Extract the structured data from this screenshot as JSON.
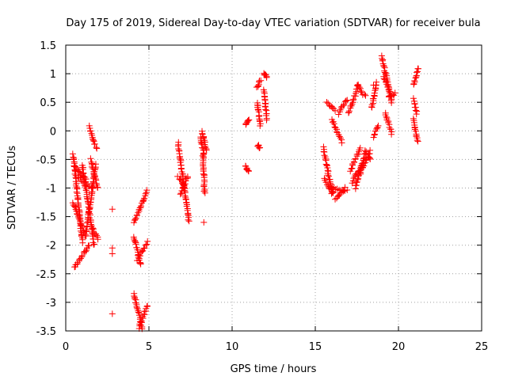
{
  "chart_data": {
    "type": "scatter",
    "title": "Day 175 of 2019, Sidereal Day-to-day VTEC variation (SDTVAR) for receiver bula",
    "xlabel": "GPS time / hours",
    "ylabel": "SDTVAR / TECUs",
    "xlim": [
      0,
      25
    ],
    "ylim": [
      -3.5,
      1.5
    ],
    "xticks": [
      0,
      5,
      10,
      15,
      20,
      25
    ],
    "yticks": [
      -3.5,
      -3,
      -2.5,
      -2,
      -1.5,
      -1,
      -0.5,
      0,
      0.5,
      1,
      1.5
    ],
    "xtick_labels": [
      "0",
      "5",
      "10",
      "15",
      "20",
      "25"
    ],
    "ytick_labels": [
      "-3.5",
      "-3",
      "-2.5",
      "-2",
      "-1.5",
      "-1",
      "-0.5",
      "0",
      "0.5",
      "1",
      "1.5"
    ],
    "grid": true,
    "marker": "+",
    "color": "#ff0000",
    "tracks": [
      {
        "x0": 0.45,
        "x1": 1.0,
        "y0": -0.42,
        "y1": -1.95
      },
      {
        "x0": 0.45,
        "x1": 1.2,
        "y0": -1.25,
        "y1": -1.85
      },
      {
        "x0": 0.5,
        "x1": 1.4,
        "y0": -2.4,
        "y1": -2.0
      },
      {
        "x0": 0.5,
        "x1": 1.2,
        "y0": -0.6,
        "y1": -0.85
      },
      {
        "x0": 0.7,
        "x1": 1.6,
        "y0": -0.8,
        "y1": -1.0
      },
      {
        "x0": 1.0,
        "x1": 1.7,
        "y0": -0.6,
        "y1": -2.0
      },
      {
        "x0": 1.2,
        "x1": 1.8,
        "y0": -1.8,
        "y1": -0.6
      },
      {
        "x0": 1.4,
        "x1": 1.85,
        "y0": 0.07,
        "y1": -0.3
      },
      {
        "x0": 1.5,
        "x1": 1.9,
        "y0": -0.5,
        "y1": -1.0
      },
      {
        "x0": 1.6,
        "x1": 1.95,
        "y0": -1.7,
        "y1": -1.9
      },
      {
        "x0": 4.1,
        "x1": 4.9,
        "y0": -1.6,
        "y1": -1.05
      },
      {
        "x0": 4.1,
        "x1": 4.5,
        "y0": -1.85,
        "y1": -2.35
      },
      {
        "x0": 4.3,
        "x1": 4.9,
        "y0": -2.25,
        "y1": -1.95
      },
      {
        "x0": 4.1,
        "x1": 4.6,
        "y0": -2.85,
        "y1": -3.45
      },
      {
        "x0": 4.4,
        "x1": 4.9,
        "y0": -3.45,
        "y1": -3.05
      },
      {
        "x0": 6.75,
        "x1": 7.4,
        "y0": -0.22,
        "y1": -1.58
      },
      {
        "x0": 6.75,
        "x1": 7.2,
        "y0": -0.8,
        "y1": -1.0
      },
      {
        "x0": 6.9,
        "x1": 7.35,
        "y0": -1.1,
        "y1": -0.8
      },
      {
        "x0": 8.1,
        "x1": 8.3,
        "y0": -0.1,
        "y1": -0.4
      },
      {
        "x0": 8.2,
        "x1": 8.45,
        "y0": 0.0,
        "y1": -0.35
      },
      {
        "x0": 8.25,
        "x1": 8.35,
        "y0": -0.4,
        "y1": -1.1
      },
      {
        "x0": 10.8,
        "x1": 11.0,
        "y0": 0.1,
        "y1": 0.2
      },
      {
        "x0": 10.8,
        "x1": 11.0,
        "y0": -0.6,
        "y1": -0.72
      },
      {
        "x0": 11.5,
        "x1": 11.7,
        "y0": 0.75,
        "y1": 0.9
      },
      {
        "x0": 11.5,
        "x1": 11.7,
        "y0": 0.5,
        "y1": 0.1
      },
      {
        "x0": 11.55,
        "x1": 11.65,
        "y0": -0.25,
        "y1": -0.3
      },
      {
        "x0": 11.9,
        "x1": 12.1,
        "y0": 1.0,
        "y1": 0.95
      },
      {
        "x0": 11.9,
        "x1": 12.1,
        "y0": 0.7,
        "y1": 0.2
      },
      {
        "x0": 15.5,
        "x1": 16.0,
        "y0": -0.3,
        "y1": -1.1
      },
      {
        "x0": 15.55,
        "x1": 16.1,
        "y0": -0.85,
        "y1": -1.1
      },
      {
        "x0": 16.0,
        "x1": 16.9,
        "y0": -1.0,
        "y1": -1.05
      },
      {
        "x0": 16.2,
        "x1": 16.8,
        "y0": -1.2,
        "y1": -1.0
      },
      {
        "x0": 15.7,
        "x1": 16.2,
        "y0": 0.5,
        "y1": 0.35
      },
      {
        "x0": 16.0,
        "x1": 16.6,
        "y0": 0.2,
        "y1": -0.2
      },
      {
        "x0": 16.4,
        "x1": 16.9,
        "y0": 0.3,
        "y1": 0.55
      },
      {
        "x0": 17.1,
        "x1": 17.7,
        "y0": -0.7,
        "y1": -0.3
      },
      {
        "x0": 17.2,
        "x1": 17.8,
        "y0": -0.9,
        "y1": -0.6
      },
      {
        "x0": 17.4,
        "x1": 18.0,
        "y0": -1.0,
        "y1": -0.4
      },
      {
        "x0": 17.7,
        "x1": 18.3,
        "y0": -0.75,
        "y1": -0.35
      },
      {
        "x0": 17.0,
        "x1": 17.6,
        "y0": 0.3,
        "y1": 0.8
      },
      {
        "x0": 17.5,
        "x1": 18.0,
        "y0": 0.8,
        "y1": 0.6
      },
      {
        "x0": 18.0,
        "x1": 18.3,
        "y0": -0.35,
        "y1": -0.5
      },
      {
        "x0": 18.4,
        "x1": 18.7,
        "y0": 0.4,
        "y1": 0.85
      },
      {
        "x0": 18.5,
        "x1": 18.8,
        "y0": -0.1,
        "y1": 0.1
      },
      {
        "x0": 19.0,
        "x1": 19.6,
        "y0": 1.3,
        "y1": 0.5
      },
      {
        "x0": 19.1,
        "x1": 19.5,
        "y0": 0.95,
        "y1": 0.7
      },
      {
        "x0": 19.2,
        "x1": 19.6,
        "y0": 0.3,
        "y1": -0.05
      },
      {
        "x0": 19.4,
        "x1": 19.8,
        "y0": 0.6,
        "y1": 0.65
      },
      {
        "x0": 20.9,
        "x1": 21.2,
        "y0": 0.8,
        "y1": 1.1
      },
      {
        "x0": 20.9,
        "x1": 21.1,
        "y0": 0.55,
        "y1": 0.3
      },
      {
        "x0": 20.9,
        "x1": 21.15,
        "y0": 0.2,
        "y1": -0.2
      }
    ],
    "points": [
      {
        "x": 2.8,
        "y": -1.37
      },
      {
        "x": 2.8,
        "y": -2.05
      },
      {
        "x": 2.8,
        "y": -2.15
      },
      {
        "x": 2.8,
        "y": -3.2
      },
      {
        "x": 8.3,
        "y": -1.6
      },
      {
        "x": 18.5,
        "y": 0.8
      }
    ]
  }
}
